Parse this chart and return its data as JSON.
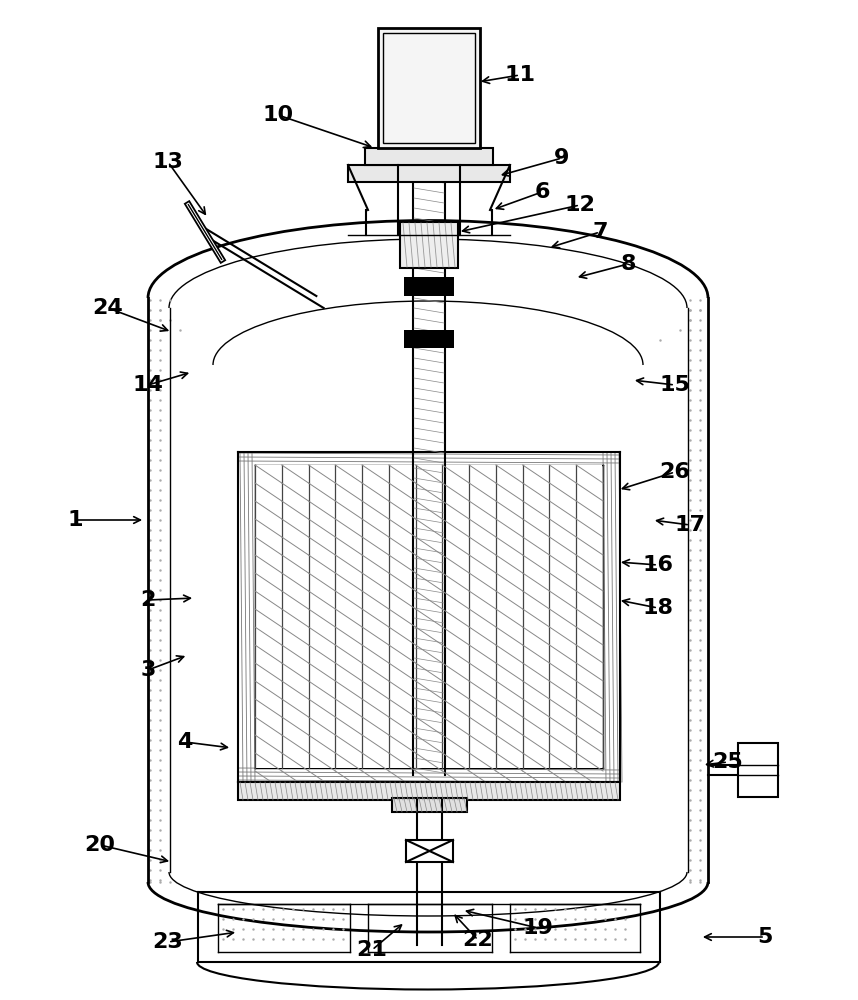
{
  "bg_color": "#ffffff",
  "line_color": "#000000",
  "label_data": {
    "1": [
      75,
      520,
      145,
      520
    ],
    "2": [
      148,
      600,
      195,
      598
    ],
    "3": [
      148,
      670,
      188,
      655
    ],
    "4": [
      185,
      742,
      232,
      748
    ],
    "5": [
      765,
      937,
      700,
      937
    ],
    "6": [
      542,
      192,
      492,
      210
    ],
    "7": [
      600,
      232,
      548,
      248
    ],
    "8": [
      628,
      264,
      575,
      278
    ],
    "9": [
      562,
      158,
      498,
      176
    ],
    "10": [
      278,
      115,
      375,
      148
    ],
    "11": [
      520,
      75,
      478,
      82
    ],
    "12": [
      580,
      205,
      458,
      232
    ],
    "13": [
      168,
      162,
      208,
      218
    ],
    "14": [
      148,
      385,
      192,
      372
    ],
    "15": [
      675,
      385,
      632,
      380
    ],
    "16": [
      658,
      565,
      618,
      562
    ],
    "17": [
      690,
      525,
      652,
      520
    ],
    "18": [
      658,
      608,
      618,
      600
    ],
    "19": [
      538,
      928,
      462,
      910
    ],
    "20": [
      100,
      845,
      172,
      862
    ],
    "21": [
      372,
      950,
      405,
      922
    ],
    "22": [
      478,
      940,
      452,
      912
    ],
    "23": [
      168,
      942,
      238,
      932
    ],
    "24": [
      108,
      308,
      172,
      332
    ],
    "25": [
      728,
      762,
      702,
      765
    ],
    "26": [
      675,
      472,
      618,
      490
    ]
  }
}
